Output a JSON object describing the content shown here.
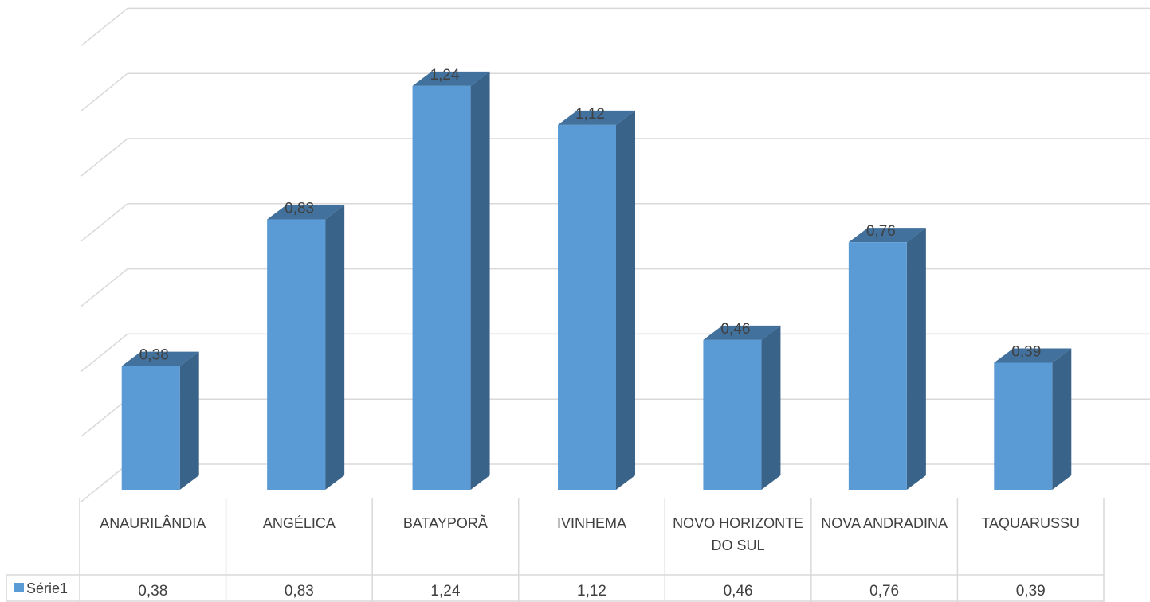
{
  "chart_data": {
    "type": "bar",
    "three_d": true,
    "title": "",
    "xlabel": "",
    "ylabel": "",
    "categories": [
      "ANAURILÂNDIA",
      "ANGÉLICA",
      "BATAYPORÃ",
      "IVINHEMA",
      "NOVO HORIZONTE DO SUL",
      "NOVA ANDRADINA",
      "TAQUARUSSU"
    ],
    "series": [
      {
        "name": "Série1",
        "values": [
          0.38,
          0.83,
          1.24,
          1.12,
          0.46,
          0.76,
          0.39
        ],
        "labels": [
          "0,38",
          "0,83",
          "1,24",
          "1,12",
          "0,46",
          "0,76",
          "0,39"
        ],
        "color": "#5B9BD5"
      }
    ],
    "ylim": [
      0,
      1.4
    ],
    "grid": true,
    "legend": "data-table",
    "data_table": true
  },
  "colors": {
    "bar_front": "#5B9BD5",
    "bar_top": "#41719C",
    "bar_side": "#3A6389",
    "grid": "#D9D9D9",
    "text": "#404040"
  }
}
